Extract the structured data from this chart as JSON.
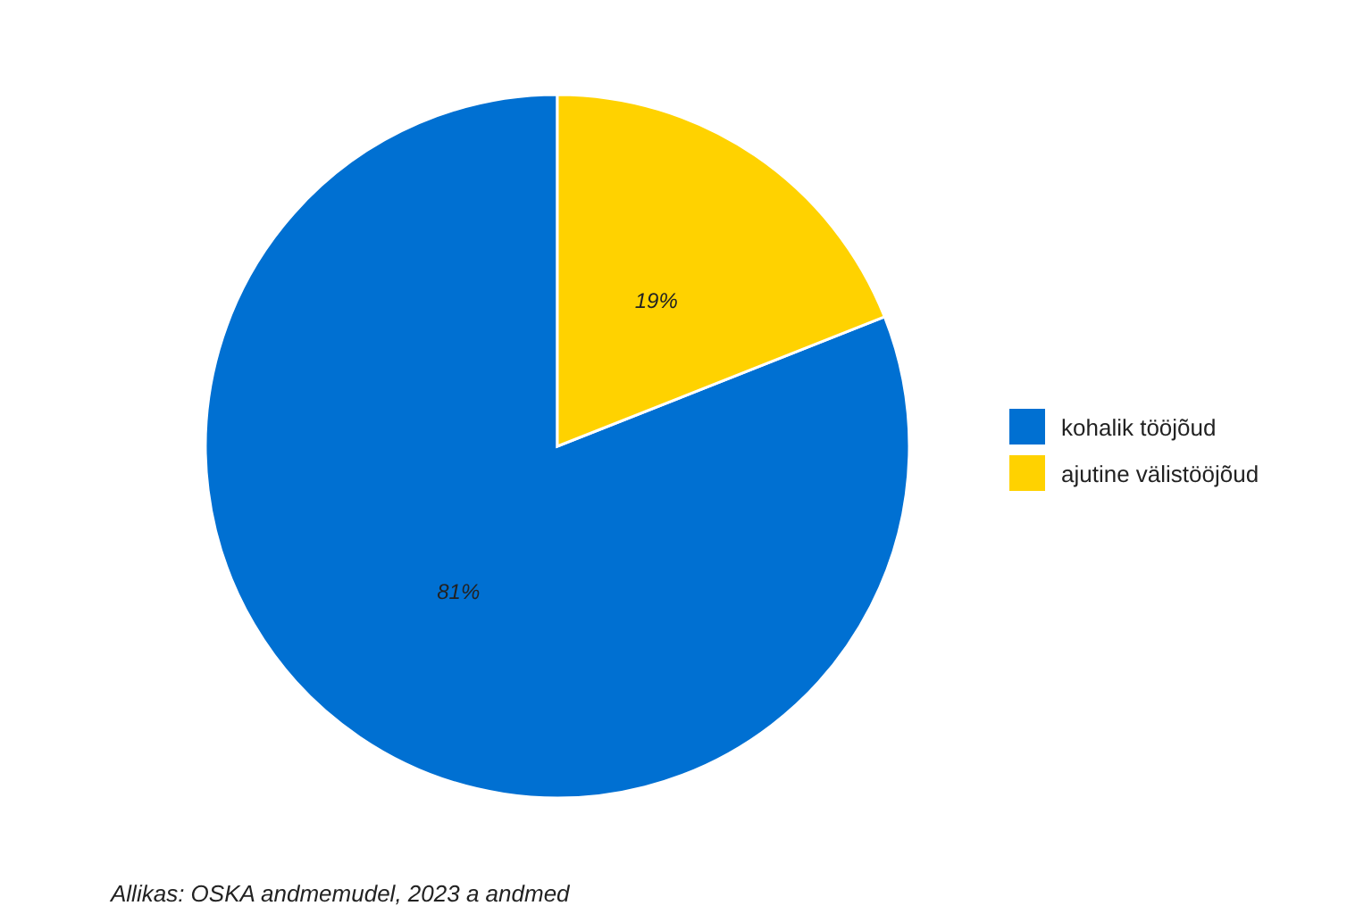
{
  "chart_data": {
    "type": "pie",
    "categories": [
      "kohalik tööjõud",
      "ajutine välistööjõud"
    ],
    "values": [
      81,
      19
    ],
    "value_labels": [
      "81%",
      "19%"
    ],
    "colors": [
      "#0070d2",
      "#ffd200"
    ],
    "legend": "right",
    "annotations": [
      "Allikas: OSKA andmemudel, 2023 a andmed"
    ]
  }
}
